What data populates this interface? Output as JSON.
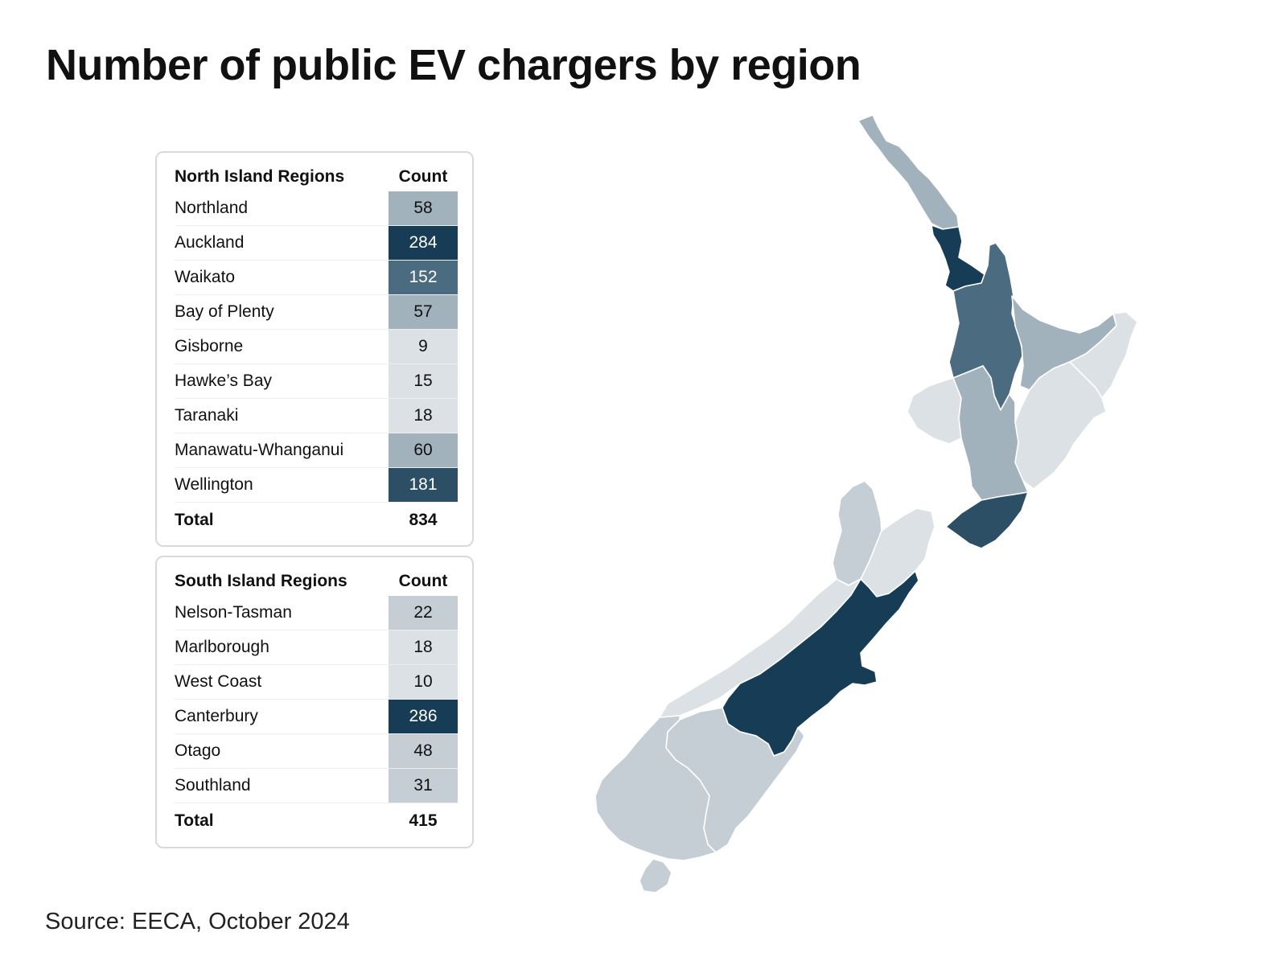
{
  "title": "Number of public EV chargers by region",
  "source": "Source: EECA, October 2024",
  "colors": {
    "very_light": "#dce1e5",
    "light": "#c5ced4",
    "medium_light": "#a2b2bd",
    "medium": "#4b6b81",
    "dark_medium": "#2d4f66",
    "dark": "#173c55"
  },
  "north_table": {
    "header_region": "North Island Regions",
    "header_count": "Count",
    "rows": [
      {
        "region": "Northland",
        "count": "58",
        "value": 58
      },
      {
        "region": "Auckland",
        "count": "284",
        "value": 284
      },
      {
        "region": "Waikato",
        "count": "152",
        "value": 152
      },
      {
        "region": "Bay of Plenty",
        "count": "57",
        "value": 57
      },
      {
        "region": "Gisborne",
        "count": "9",
        "value": 9
      },
      {
        "region": "Hawke’s Bay",
        "count": "15",
        "value": 15
      },
      {
        "region": "Taranaki",
        "count": "18",
        "value": 18
      },
      {
        "region": "Manawatu-Whanganui",
        "count": "60",
        "value": 60
      },
      {
        "region": "Wellington",
        "count": "181",
        "value": 181
      }
    ],
    "total_label": "Total",
    "total": "834"
  },
  "south_table": {
    "header_region": "South Island Regions",
    "header_count": "Count",
    "rows": [
      {
        "region": "Nelson-Tasman",
        "count": "22",
        "value": 22
      },
      {
        "region": "Marlborough",
        "count": "18",
        "value": 18
      },
      {
        "region": "West Coast",
        "count": "10",
        "value": 10
      },
      {
        "region": "Canterbury",
        "count": "286",
        "value": 286
      },
      {
        "region": "Otago",
        "count": "48",
        "value": 48
      },
      {
        "region": "Southland",
        "count": "31",
        "value": 31
      }
    ],
    "total_label": "Total",
    "total": "415"
  }
}
